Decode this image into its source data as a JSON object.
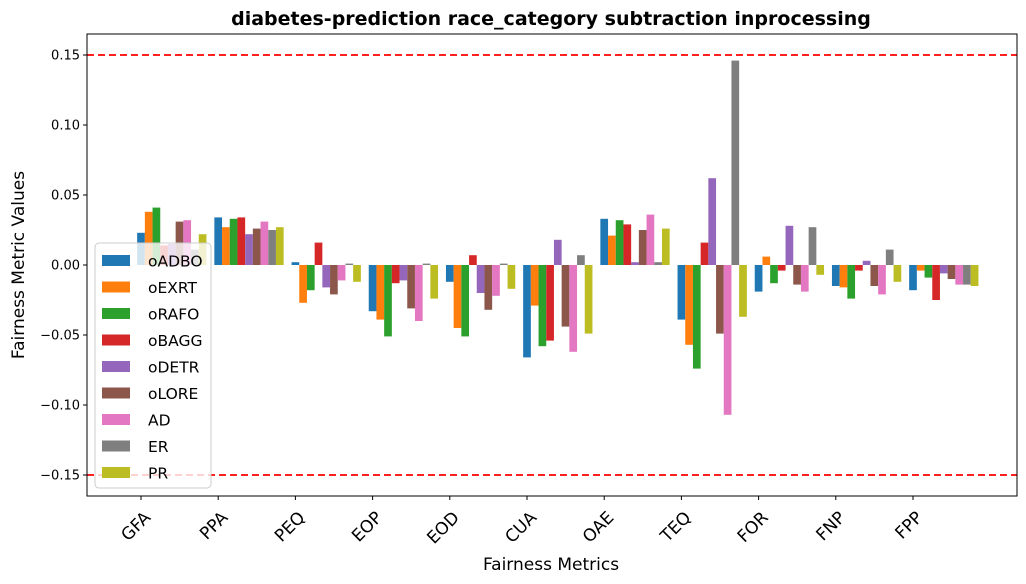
{
  "chart_data": {
    "type": "bar",
    "title": "diabetes-prediction race_category subtraction inprocessing",
    "xlabel": "Fairness Metrics",
    "ylabel": "Fairness Metric Values",
    "categories": [
      "GFA",
      "PPA",
      "PEQ",
      "EOP",
      "EOD",
      "CUA",
      "OAE",
      "TEQ",
      "FOR",
      "FNP",
      "FPP"
    ],
    "ylim": [
      -0.165,
      0.165
    ],
    "yticks": [
      -0.15,
      -0.1,
      -0.05,
      0.0,
      0.05,
      0.1,
      0.15
    ],
    "ytick_labels": [
      "−0.15",
      "−0.10",
      "−0.05",
      "0.00",
      "0.05",
      "0.10",
      "0.15"
    ],
    "reference_lines": [
      {
        "value": 0.15,
        "color": "#ff0000",
        "style": "dashed"
      },
      {
        "value": -0.15,
        "color": "#ff0000",
        "style": "dashed"
      }
    ],
    "legend_position": "lower-left",
    "grid": false,
    "series": [
      {
        "name": "oADBO",
        "color": "#1f77b4",
        "values": [
          0.023,
          0.034,
          0.002,
          -0.033,
          -0.012,
          -0.066,
          0.033,
          -0.039,
          -0.019,
          -0.015,
          -0.018
        ]
      },
      {
        "name": "oEXRT",
        "color": "#ff7f0e",
        "values": [
          0.038,
          0.027,
          -0.027,
          -0.039,
          -0.045,
          -0.029,
          0.021,
          -0.057,
          0.006,
          -0.016,
          -0.004
        ]
      },
      {
        "name": "oRAFO",
        "color": "#2ca02c",
        "values": [
          0.041,
          0.033,
          -0.018,
          -0.051,
          -0.051,
          -0.058,
          0.032,
          -0.074,
          -0.013,
          -0.024,
          -0.009
        ]
      },
      {
        "name": "oBAGG",
        "color": "#d62728",
        "values": [
          0.014,
          0.034,
          0.016,
          -0.013,
          0.007,
          -0.054,
          0.029,
          0.016,
          -0.004,
          -0.004,
          -0.025
        ]
      },
      {
        "name": "oDETR",
        "color": "#9467bd",
        "values": [
          0.015,
          0.022,
          -0.016,
          -0.011,
          -0.02,
          0.018,
          0.002,
          0.062,
          0.028,
          0.003,
          -0.006
        ]
      },
      {
        "name": "oLORE",
        "color": "#8c564b",
        "values": [
          0.031,
          0.026,
          -0.021,
          -0.031,
          -0.032,
          -0.044,
          0.025,
          -0.049,
          -0.014,
          -0.015,
          -0.01
        ]
      },
      {
        "name": "AD",
        "color": "#e377c2",
        "values": [
          0.032,
          0.031,
          -0.011,
          -0.04,
          -0.022,
          -0.062,
          0.036,
          -0.107,
          -0.019,
          -0.021,
          -0.014
        ]
      },
      {
        "name": "ER",
        "color": "#7f7f7f",
        "values": [
          0.011,
          0.025,
          0.001,
          0.001,
          0.001,
          0.007,
          0.002,
          0.146,
          0.027,
          0.011,
          -0.014
        ]
      },
      {
        "name": "PR",
        "color": "#bcbd22",
        "values": [
          0.022,
          0.027,
          -0.012,
          -0.024,
          -0.017,
          -0.049,
          0.026,
          -0.037,
          -0.007,
          -0.012,
          -0.015
        ]
      }
    ]
  }
}
